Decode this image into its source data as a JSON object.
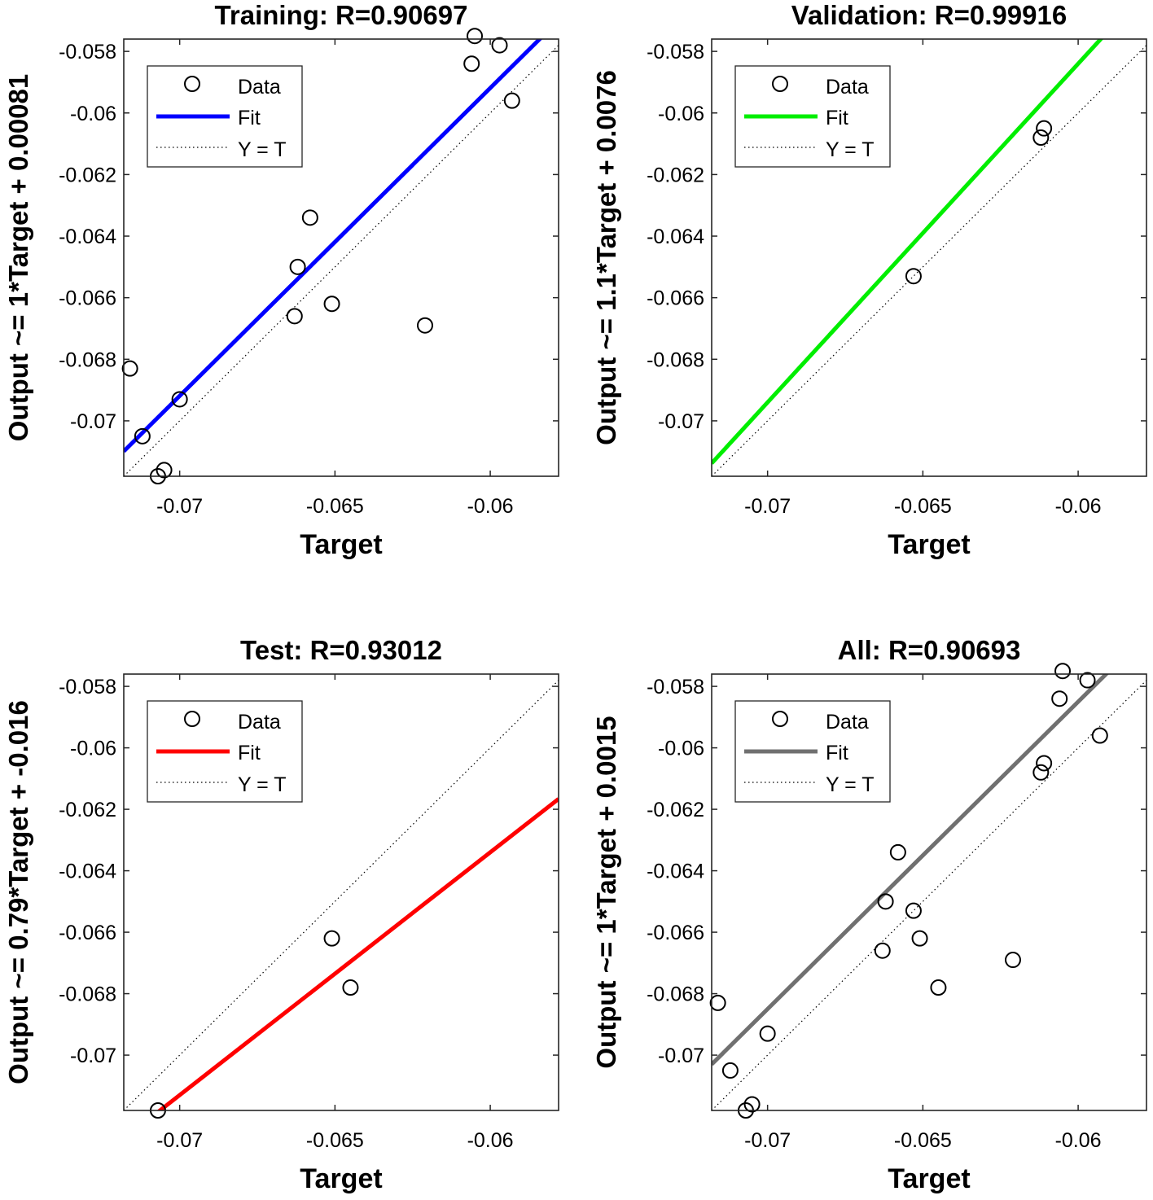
{
  "chart_data": [
    {
      "type": "scatter",
      "title": "Training: R=0.90697",
      "xlabel": "Target",
      "ylabel": "Output ~= 1*Target + 0.00081",
      "xlim": [
        -0.0718,
        -0.0578
      ],
      "ylim": [
        -0.0718,
        -0.0576
      ],
      "xticks": [
        -0.07,
        -0.065,
        -0.06
      ],
      "xtick_labels": [
        "-0.07",
        "-0.065",
        "-0.06"
      ],
      "yticks": [
        -0.07,
        -0.068,
        -0.066,
        -0.064,
        -0.062,
        -0.06,
        -0.058
      ],
      "ytick_labels": [
        "-0.07",
        "-0.068",
        "-0.066",
        "-0.064",
        "-0.062",
        "-0.06",
        "-0.058"
      ],
      "fit": {
        "slope": 1,
        "intercept": 0.00081,
        "color": "#0000ff"
      },
      "legend": {
        "position": "top-left",
        "entries": [
          "Data",
          "Fit",
          "Y = T"
        ]
      },
      "points": [
        {
          "x": -0.0716,
          "y": -0.0683
        },
        {
          "x": -0.0712,
          "y": -0.0705
        },
        {
          "x": -0.0707,
          "y": -0.0718
        },
        {
          "x": -0.0705,
          "y": -0.0716
        },
        {
          "x": -0.07,
          "y": -0.0693
        },
        {
          "x": -0.0663,
          "y": -0.0666
        },
        {
          "x": -0.0662,
          "y": -0.065
        },
        {
          "x": -0.0658,
          "y": -0.0634
        },
        {
          "x": -0.0651,
          "y": -0.0662
        },
        {
          "x": -0.0621,
          "y": -0.0669
        },
        {
          "x": -0.0606,
          "y": -0.0584
        },
        {
          "x": -0.0605,
          "y": -0.0575
        },
        {
          "x": -0.0597,
          "y": -0.0578
        },
        {
          "x": -0.0593,
          "y": -0.0596
        }
      ]
    },
    {
      "type": "scatter",
      "title": "Validation: R=0.99916",
      "xlabel": "Target",
      "ylabel": "Output ~= 1.1*Target + 0.0076",
      "xlim": [
        -0.0718,
        -0.0578
      ],
      "ylim": [
        -0.0718,
        -0.0576
      ],
      "xticks": [
        -0.07,
        -0.065,
        -0.06
      ],
      "xtick_labels": [
        "-0.07",
        "-0.065",
        "-0.06"
      ],
      "yticks": [
        -0.07,
        -0.068,
        -0.066,
        -0.064,
        -0.062,
        -0.06,
        -0.058
      ],
      "ytick_labels": [
        "-0.07",
        "-0.068",
        "-0.066",
        "-0.064",
        "-0.062",
        "-0.06",
        "-0.058"
      ],
      "fit": {
        "slope": 1.1,
        "intercept": 0.0076,
        "color": "#00ee00"
      },
      "legend": {
        "position": "top-left",
        "entries": [
          "Data",
          "Fit",
          "Y = T"
        ]
      },
      "points": [
        {
          "x": -0.0653,
          "y": -0.0653
        },
        {
          "x": -0.0612,
          "y": -0.0608
        },
        {
          "x": -0.0611,
          "y": -0.0605
        }
      ]
    },
    {
      "type": "scatter",
      "title": "Test: R=0.93012",
      "xlabel": "Target",
      "ylabel": "Output ~= 0.79*Target + -0.016",
      "xlim": [
        -0.0718,
        -0.0578
      ],
      "ylim": [
        -0.0718,
        -0.0576
      ],
      "xticks": [
        -0.07,
        -0.065,
        -0.06
      ],
      "xtick_labels": [
        "-0.07",
        "-0.065",
        "-0.06"
      ],
      "yticks": [
        -0.07,
        -0.068,
        -0.066,
        -0.064,
        -0.062,
        -0.06,
        -0.058
      ],
      "ytick_labels": [
        "-0.07",
        "-0.068",
        "-0.066",
        "-0.064",
        "-0.062",
        "-0.06",
        "-0.058"
      ],
      "fit": {
        "slope": 0.79,
        "intercept": -0.016,
        "color": "#ff0000"
      },
      "legend": {
        "position": "top-left",
        "entries": [
          "Data",
          "Fit",
          "Y = T"
        ]
      },
      "points": [
        {
          "x": -0.0707,
          "y": -0.0718
        },
        {
          "x": -0.0651,
          "y": -0.0662
        },
        {
          "x": -0.0645,
          "y": -0.0678
        }
      ]
    },
    {
      "type": "scatter",
      "title": "All: R=0.90693",
      "xlabel": "Target",
      "ylabel": "Output ~= 1*Target + 0.0015",
      "xlim": [
        -0.0718,
        -0.0578
      ],
      "ylim": [
        -0.0718,
        -0.0576
      ],
      "xticks": [
        -0.07,
        -0.065,
        -0.06
      ],
      "xtick_labels": [
        "-0.07",
        "-0.065",
        "-0.06"
      ],
      "yticks": [
        -0.07,
        -0.068,
        -0.066,
        -0.064,
        -0.062,
        -0.06,
        -0.058
      ],
      "ytick_labels": [
        "-0.07",
        "-0.068",
        "-0.066",
        "-0.064",
        "-0.062",
        "-0.06",
        "-0.058"
      ],
      "fit": {
        "slope": 1,
        "intercept": 0.0015,
        "color": "#707070"
      },
      "legend": {
        "position": "top-left",
        "entries": [
          "Data",
          "Fit",
          "Y = T"
        ]
      },
      "points": [
        {
          "x": -0.0716,
          "y": -0.0683
        },
        {
          "x": -0.0712,
          "y": -0.0705
        },
        {
          "x": -0.0707,
          "y": -0.0718
        },
        {
          "x": -0.0705,
          "y": -0.0716
        },
        {
          "x": -0.07,
          "y": -0.0693
        },
        {
          "x": -0.0663,
          "y": -0.0666
        },
        {
          "x": -0.0662,
          "y": -0.065
        },
        {
          "x": -0.0658,
          "y": -0.0634
        },
        {
          "x": -0.0653,
          "y": -0.0653
        },
        {
          "x": -0.0651,
          "y": -0.0662
        },
        {
          "x": -0.0645,
          "y": -0.0678
        },
        {
          "x": -0.0621,
          "y": -0.0669
        },
        {
          "x": -0.0612,
          "y": -0.0608
        },
        {
          "x": -0.0611,
          "y": -0.0605
        },
        {
          "x": -0.0606,
          "y": -0.0584
        },
        {
          "x": -0.0605,
          "y": -0.0575
        },
        {
          "x": -0.0597,
          "y": -0.0578
        },
        {
          "x": -0.0593,
          "y": -0.0596
        }
      ]
    }
  ]
}
